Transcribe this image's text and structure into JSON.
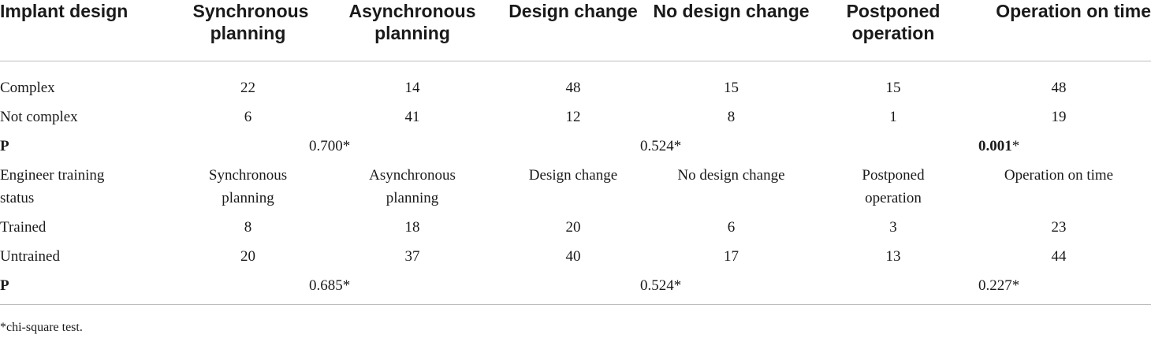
{
  "table": {
    "headers": [
      "Implant design",
      "Synchronous planning",
      "Asynchronous planning",
      "Design change",
      "No design change",
      "Postponed operation",
      "Operation on time"
    ],
    "rows": [
      {
        "label": "Complex",
        "values": [
          "22",
          "14",
          "48",
          "15",
          "15",
          "48"
        ]
      },
      {
        "label": "Not complex",
        "values": [
          "6",
          "41",
          "12",
          "8",
          "1",
          "19"
        ]
      }
    ],
    "p_row_1": {
      "label": "P",
      "planning": "0.700*",
      "design": "0.524*",
      "operation": "0.001",
      "operation_suffix": "*"
    },
    "subheader": [
      "Engineer training status",
      "Synchronous planning",
      "Asynchronous planning",
      "Design change",
      "No design change",
      "Postponed operation",
      "Operation on time"
    ],
    "rows_2": [
      {
        "label": "Trained",
        "values": [
          "8",
          "18",
          "20",
          "6",
          "3",
          "23"
        ]
      },
      {
        "label": "Untrained",
        "values": [
          "20",
          "37",
          "40",
          "17",
          "13",
          "44"
        ]
      }
    ],
    "p_row_2": {
      "label": "P",
      "planning": "0.685*",
      "design": "0.524*",
      "operation": "0.227*"
    }
  },
  "footnote": "*chi-square test."
}
